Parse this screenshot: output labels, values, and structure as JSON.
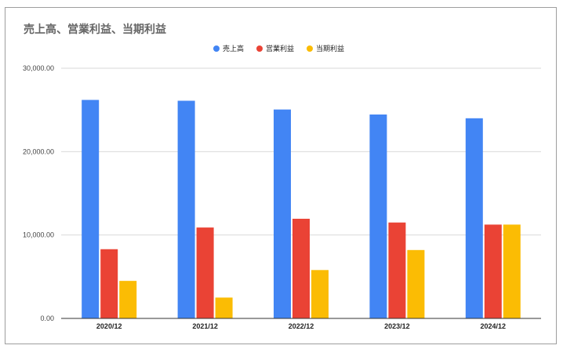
{
  "chart_data": {
    "type": "bar",
    "title": "売上高、営業利益、当期利益",
    "categories": [
      "2020/12",
      "2021/12",
      "2022/12",
      "2023/12",
      "2024/12"
    ],
    "series": [
      {
        "name": "売上高",
        "color": "#4285f4",
        "values": [
          26200,
          26100,
          25050,
          24450,
          24000
        ]
      },
      {
        "name": "営業利益",
        "color": "#ea4335",
        "values": [
          8300,
          10900,
          11950,
          11500,
          11250
        ]
      },
      {
        "name": "当期利益",
        "color": "#fbbc04",
        "values": [
          4500,
          2500,
          5800,
          8200,
          11250
        ]
      }
    ],
    "y_ticks": [
      "0.00",
      "10,000.00",
      "20,000.00",
      "30,000.00"
    ],
    "ylim": [
      0,
      30000
    ],
    "grid": true,
    "legend_position": "top-center"
  }
}
